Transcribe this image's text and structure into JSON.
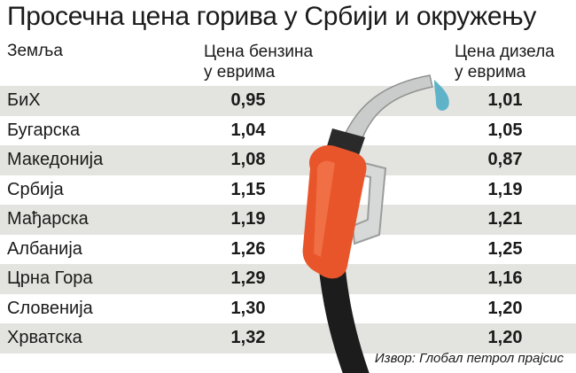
{
  "title": "Просечна цена горива у Србији и окружењу",
  "chart_data": {
    "type": "table",
    "columns": [
      "Земља",
      "Цена бензина у еврима",
      "Цена дизела у еврима"
    ],
    "header_lines": {
      "country": "Земља",
      "petrol_1": "Цена бензина",
      "petrol_2": "у еврима",
      "diesel_1": "Цена дизела",
      "diesel_2": "у еврима"
    },
    "rows": [
      {
        "country": "БиХ",
        "petrol": "0,95",
        "diesel": "1,01"
      },
      {
        "country": "Бугарска",
        "petrol": "1,04",
        "diesel": "1,05"
      },
      {
        "country": "Македонија",
        "petrol": "1,08",
        "diesel": "0,87"
      },
      {
        "country": "Србија",
        "petrol": "1,15",
        "diesel": "1,19"
      },
      {
        "country": "Мађарска",
        "petrol": "1,19",
        "diesel": "1,21"
      },
      {
        "country": "Албанија",
        "petrol": "1,26",
        "diesel": "1,25"
      },
      {
        "country": "Црна Гора",
        "petrol": "1,29",
        "diesel": "1,16"
      },
      {
        "country": "Словенија",
        "petrol": "1,30",
        "diesel": "1,20"
      },
      {
        "country": "Хрватска",
        "petrol": "1,32",
        "diesel": "1,20"
      }
    ]
  },
  "source": "Извор: Глобал петрол прајсис",
  "colors": {
    "row_shade": "#e3e3df",
    "nozzle_orange": "#e9552a",
    "hose": "#1c1c1c",
    "spout": "#c9ccca",
    "drop": "#5fb3c9"
  },
  "illustration": "fuel-nozzle-icon"
}
